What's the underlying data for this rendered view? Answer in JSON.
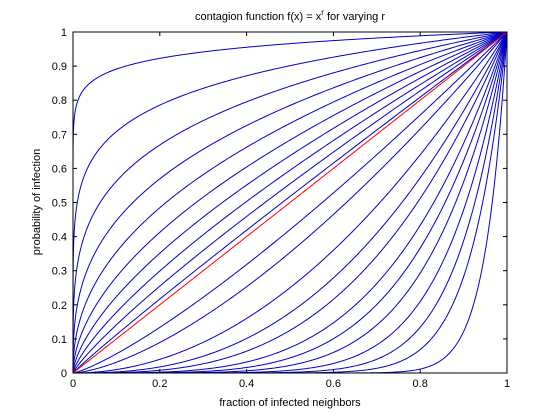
{
  "chart_data": {
    "type": "line",
    "title": "contagion function f(x) = x",
    "title_superscript": "r",
    "title_suffix": " for varying r",
    "xlabel": "fraction of infected neighbors",
    "ylabel": "probability of infection",
    "xlim": [
      0,
      1
    ],
    "ylim": [
      0,
      1
    ],
    "x_ticks": [
      "0",
      "0.2",
      "0.4",
      "0.6",
      "0.8",
      "1"
    ],
    "y_ticks": [
      "0",
      "0.1",
      "0.2",
      "0.3",
      "0.4",
      "0.5",
      "0.6",
      "0.7",
      "0.8",
      "0.9",
      "1"
    ],
    "grid": false,
    "function": "x^r",
    "r_values": [
      0.05,
      0.15,
      0.25,
      0.35,
      0.45,
      0.55,
      0.65,
      0.75,
      0.85,
      0.95,
      1,
      1.25,
      1.5,
      2,
      2.5,
      3,
      3.75,
      4.5,
      5.5,
      7,
      9,
      12,
      20
    ],
    "highlight_r": 1,
    "colors": {
      "curve": "#0000cc",
      "highlight": "#ff0000",
      "axis": "#000000"
    }
  }
}
